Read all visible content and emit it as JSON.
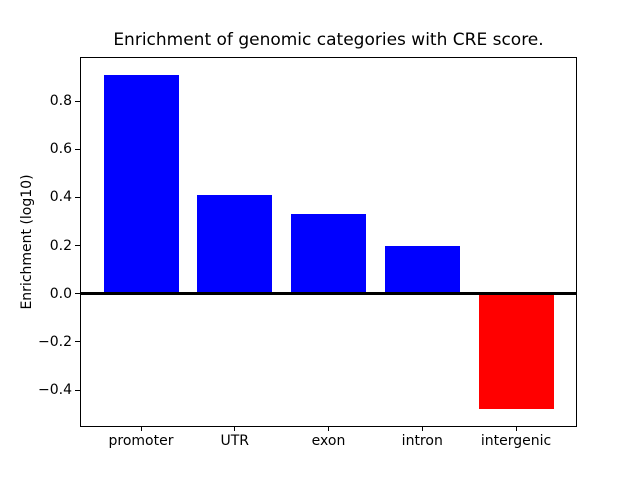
{
  "chart_data": {
    "type": "bar",
    "title": "Enrichment of genomic categories with CRE score.",
    "xlabel": "",
    "ylabel": "Enrichment (log10)",
    "categories": [
      "promoter",
      "UTR",
      "exon",
      "intron",
      "intergenic"
    ],
    "values": [
      0.91,
      0.41,
      0.33,
      0.2,
      -0.48
    ],
    "bar_colors": [
      "#0000ff",
      "#0000ff",
      "#0000ff",
      "#0000ff",
      "#ff0000"
    ],
    "positive_color": "#0000ff",
    "negative_color": "#ff0000",
    "yticks": [
      0.8,
      0.6,
      0.4,
      0.2,
      0.0,
      -0.2,
      -0.4
    ],
    "ylim": [
      -0.5495,
      0.9795
    ],
    "xlim": [
      -0.64,
      4.64
    ],
    "bar_width": 0.8,
    "zero_line": true,
    "grid": false,
    "legend_position": "none",
    "frame_color": "#000000",
    "background_color": "#ffffff"
  }
}
